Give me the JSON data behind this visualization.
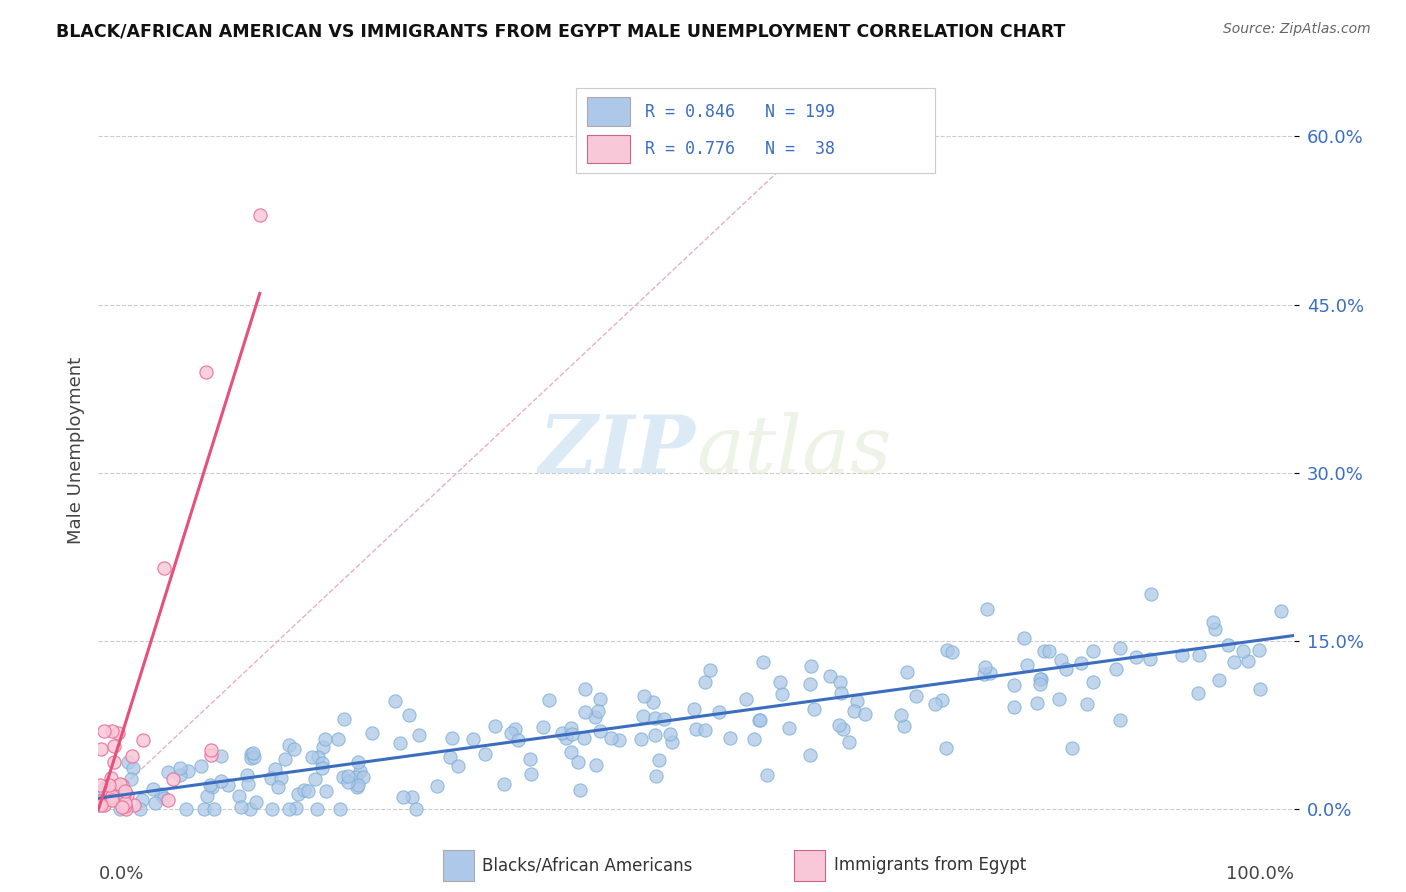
{
  "title": "BLACK/AFRICAN AMERICAN VS IMMIGRANTS FROM EGYPT MALE UNEMPLOYMENT CORRELATION CHART",
  "source": "Source: ZipAtlas.com",
  "ylabel": "Male Unemployment",
  "y_ticks": [
    0.0,
    0.15,
    0.3,
    0.45,
    0.6
  ],
  "y_tick_labels": [
    "0.0%",
    "15.0%",
    "30.0%",
    "45.0%",
    "60.0%"
  ],
  "x_lim": [
    0.0,
    1.0
  ],
  "y_lim": [
    -0.01,
    0.65
  ],
  "blue_R": 0.846,
  "blue_N": 199,
  "pink_R": 0.776,
  "pink_N": 38,
  "blue_color": "#adc8e8",
  "blue_edge_color": "#7aadd4",
  "blue_line_color": "#3c6ebf",
  "pink_color": "#f9c8d8",
  "pink_edge_color": "#e87098",
  "pink_line_color": "#e8507a",
  "legend_blue_label": "Blacks/African Americans",
  "legend_pink_label": "Immigrants from Egypt",
  "watermark_zip": "ZIP",
  "watermark_atlas": "atlas",
  "background_color": "#ffffff",
  "grid_color": "#cccccc",
  "refline_color": "#e8b0c0"
}
